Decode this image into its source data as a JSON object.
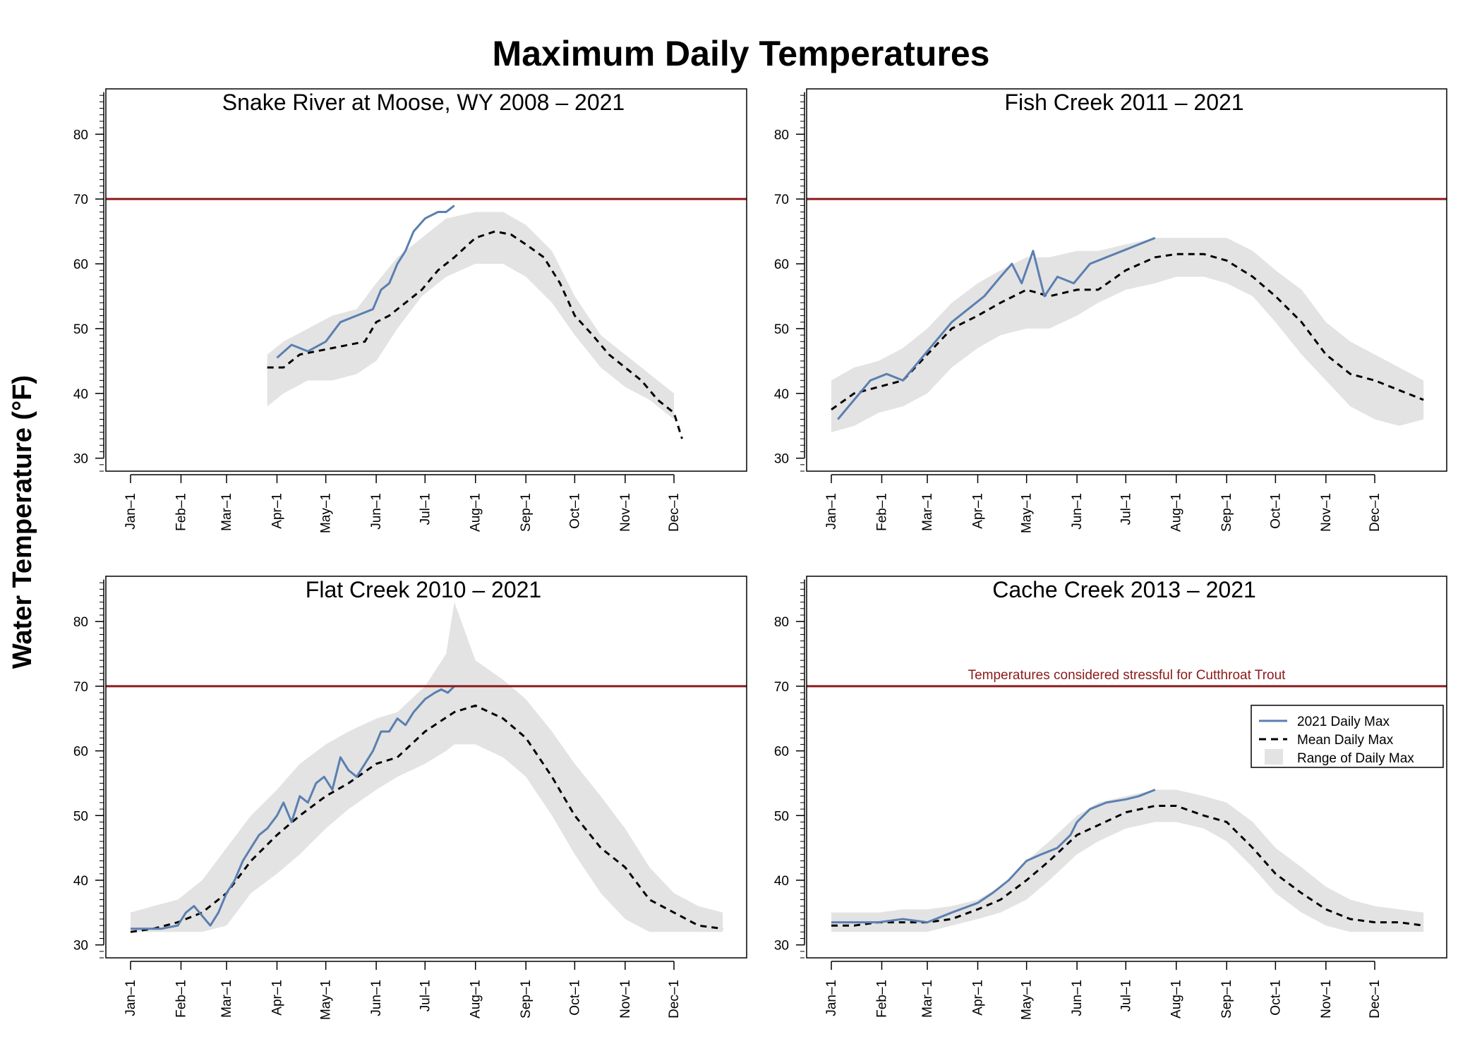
{
  "figure": {
    "title": "Maximum Daily Temperatures",
    "ylabel": "Water Temperature (°F)"
  },
  "colors": {
    "observed": "#5b7fb0",
    "mean": "#000000",
    "range": "#e3e3e3",
    "threshold": "#8b1a1a"
  },
  "threshold_label": "Temperatures considered stressful for Cutthroat Trout",
  "legend": {
    "observed": "2021 Daily Max",
    "mean": "Mean Daily Max",
    "range": "Range of Daily Max"
  },
  "chart_data": [
    {
      "type": "line",
      "title": "Snake River at Moose, WY 2008 – 2021",
      "xticks": [
        "Jan–1",
        "Feb–1",
        "Mar–1",
        "Apr–1",
        "May–1",
        "Jun–1",
        "Jul–1",
        "Aug–1",
        "Sep–1",
        "Oct–1",
        "Nov–1",
        "Dec–1"
      ],
      "xtick_days": [
        1,
        32,
        60,
        91,
        121,
        152,
        182,
        213,
        244,
        274,
        305,
        335
      ],
      "ylim": [
        28,
        87
      ],
      "yticks": [
        30,
        40,
        50,
        60,
        70,
        80
      ],
      "threshold": 70,
      "series": [
        {
          "name": "2021 Daily Max",
          "x": [
            91,
            100,
            110,
            121,
            130,
            140,
            150,
            155,
            160,
            165,
            170,
            175,
            182,
            190,
            195,
            200
          ],
          "y": [
            45.5,
            47.5,
            46.5,
            48,
            51,
            52,
            53,
            56,
            57,
            60,
            62,
            65,
            67,
            68,
            68,
            69
          ]
        },
        {
          "name": "Mean Daily Max",
          "x": [
            85,
            95,
            105,
            115,
            125,
            135,
            145,
            152,
            160,
            170,
            180,
            190,
            200,
            213,
            225,
            235,
            244,
            255,
            265,
            274,
            285,
            295,
            305,
            315,
            325,
            335,
            340
          ],
          "y": [
            44,
            44,
            46,
            46.5,
            47,
            47.5,
            48,
            51,
            52,
            54,
            56,
            59,
            61,
            64,
            65,
            64.5,
            63,
            61,
            57,
            52,
            49,
            46,
            44,
            42,
            39,
            37,
            33
          ]
        },
        {
          "name": "Range of Daily Max",
          "x": [
            85,
            95,
            110,
            125,
            140,
            152,
            165,
            180,
            195,
            213,
            230,
            244,
            260,
            274,
            290,
            305,
            320,
            335
          ],
          "lower": [
            38,
            40,
            42,
            42,
            43,
            45,
            50,
            55,
            58,
            60,
            60,
            58,
            54,
            49,
            44,
            41,
            39,
            36
          ],
          "upper": [
            46,
            48,
            50,
            52,
            53,
            57,
            61,
            64,
            67,
            68,
            68,
            66,
            62,
            55,
            49,
            46,
            43,
            40
          ]
        }
      ]
    },
    {
      "type": "line",
      "title": "Fish Creek 2011 – 2021",
      "xticks": [
        "Jan–1",
        "Feb–1",
        "Mar–1",
        "Apr–1",
        "May–1",
        "Jun–1",
        "Jul–1",
        "Aug–1",
        "Sep–1",
        "Oct–1",
        "Nov–1",
        "Dec–1"
      ],
      "xtick_days": [
        1,
        32,
        60,
        91,
        121,
        152,
        182,
        213,
        244,
        274,
        305,
        335
      ],
      "ylim": [
        28,
        87
      ],
      "yticks": [
        30,
        40,
        50,
        60,
        70,
        80
      ],
      "threshold": 70,
      "series": [
        {
          "name": "2021 Daily Max",
          "x": [
            5,
            15,
            25,
            35,
            45,
            55,
            65,
            75,
            85,
            95,
            105,
            112,
            118,
            125,
            132,
            140,
            150,
            160,
            170,
            180,
            190,
            200
          ],
          "y": [
            36,
            39,
            42,
            43,
            42,
            45,
            48,
            51,
            53,
            55,
            58,
            60,
            57,
            62,
            55,
            58,
            57,
            60,
            61,
            62,
            63,
            64
          ]
        },
        {
          "name": "Mean Daily Max",
          "x": [
            1,
            15,
            30,
            45,
            60,
            75,
            91,
            105,
            121,
            135,
            152,
            165,
            182,
            200,
            213,
            230,
            244,
            260,
            274,
            290,
            305,
            320,
            335,
            350,
            365
          ],
          "y": [
            37.5,
            40,
            41,
            42,
            46,
            50,
            52,
            54,
            56,
            55,
            56,
            56,
            59,
            61,
            61.5,
            61.5,
            60.5,
            58,
            55,
            51,
            46,
            43,
            42,
            40.5,
            39
          ]
        },
        {
          "name": "Range of Daily Max",
          "x": [
            1,
            15,
            30,
            45,
            60,
            75,
            91,
            105,
            121,
            135,
            152,
            165,
            182,
            200,
            213,
            230,
            244,
            260,
            274,
            290,
            305,
            320,
            335,
            350,
            365
          ],
          "lower": [
            34,
            35,
            37,
            38,
            40,
            44,
            47,
            49,
            50,
            50,
            52,
            54,
            56,
            57,
            58,
            58,
            57,
            55,
            51,
            46,
            42,
            38,
            36,
            35,
            36
          ],
          "upper": [
            42,
            44,
            45,
            47,
            50,
            54,
            57,
            59,
            61,
            61,
            62,
            62,
            63,
            64,
            64,
            64,
            64,
            62,
            59,
            56,
            51,
            48,
            46,
            44,
            42
          ]
        }
      ]
    },
    {
      "type": "line",
      "title": "Flat Creek 2010 – 2021",
      "xticks": [
        "Jan–1",
        "Feb–1",
        "Mar–1",
        "Apr–1",
        "May–1",
        "Jun–1",
        "Jul–1",
        "Aug–1",
        "Sep–1",
        "Oct–1",
        "Nov–1",
        "Dec–1"
      ],
      "xtick_days": [
        1,
        32,
        60,
        91,
        121,
        152,
        182,
        213,
        244,
        274,
        305,
        335
      ],
      "ylim": [
        28,
        87
      ],
      "yticks": [
        30,
        40,
        50,
        60,
        70,
        80
      ],
      "threshold": 70,
      "series": [
        {
          "name": "2021 Daily Max",
          "x": [
            1,
            10,
            20,
            30,
            35,
            40,
            50,
            55,
            60,
            65,
            70,
            75,
            80,
            85,
            91,
            95,
            100,
            105,
            110,
            115,
            120,
            125,
            130,
            135,
            140,
            145,
            150,
            155,
            160,
            165,
            170,
            175,
            182,
            188,
            192,
            196,
            200
          ],
          "y": [
            32.5,
            32.5,
            32.5,
            33,
            35,
            36,
            33,
            35,
            38,
            40,
            43,
            45,
            47,
            48,
            50,
            52,
            49,
            53,
            52,
            55,
            56,
            54,
            59,
            57,
            56,
            58,
            60,
            63,
            63,
            65,
            64,
            66,
            68,
            69,
            69.5,
            69,
            70
          ]
        },
        {
          "name": "Mean Daily Max",
          "x": [
            1,
            15,
            30,
            45,
            60,
            75,
            91,
            105,
            121,
            135,
            152,
            165,
            182,
            200,
            213,
            230,
            244,
            260,
            274,
            290,
            305,
            320,
            335,
            350,
            365
          ],
          "y": [
            32,
            32.5,
            33.5,
            35,
            38,
            43,
            47,
            50,
            53,
            55,
            58,
            59,
            63,
            66,
            67,
            65,
            62,
            56,
            50,
            45,
            42,
            37,
            35,
            33,
            32.5
          ]
        },
        {
          "name": "Range of Daily Max",
          "x": [
            1,
            15,
            30,
            45,
            60,
            75,
            91,
            105,
            121,
            135,
            152,
            165,
            182,
            195,
            200,
            213,
            230,
            244,
            260,
            274,
            290,
            305,
            320,
            335,
            350,
            365
          ],
          "lower": [
            32,
            32,
            32,
            32,
            33,
            38,
            41,
            44,
            48,
            51,
            54,
            56,
            58,
            60,
            61,
            61,
            59,
            56,
            50,
            44,
            38,
            34,
            32,
            32,
            32,
            32
          ],
          "upper": [
            35,
            36,
            37,
            40,
            45,
            50,
            54,
            58,
            61,
            63,
            65,
            66,
            70,
            75,
            83,
            74,
            71,
            68,
            63,
            58,
            53,
            48,
            42,
            38,
            36,
            35
          ]
        }
      ]
    },
    {
      "type": "line",
      "title": "Cache Creek 2013 – 2021",
      "xticks": [
        "Jan–1",
        "Feb–1",
        "Mar–1",
        "Apr–1",
        "May–1",
        "Jun–1",
        "Jul–1",
        "Aug–1",
        "Sep–1",
        "Oct–1",
        "Nov–1",
        "Dec–1"
      ],
      "xtick_days": [
        1,
        32,
        60,
        91,
        121,
        152,
        182,
        213,
        244,
        274,
        305,
        335
      ],
      "ylim": [
        28,
        87
      ],
      "yticks": [
        30,
        40,
        50,
        60,
        70,
        80
      ],
      "threshold": 70,
      "series": [
        {
          "name": "2021 Daily Max",
          "x": [
            1,
            15,
            30,
            45,
            60,
            75,
            91,
            100,
            110,
            121,
            130,
            140,
            148,
            152,
            160,
            170,
            182,
            190,
            200
          ],
          "y": [
            33.5,
            33.5,
            33.5,
            34,
            33.5,
            35,
            36.5,
            38,
            40,
            43,
            44,
            45,
            47,
            49,
            51,
            52,
            52.5,
            53,
            54
          ]
        },
        {
          "name": "Mean Daily Max",
          "x": [
            1,
            15,
            30,
            45,
            60,
            75,
            91,
            105,
            121,
            135,
            152,
            165,
            182,
            200,
            213,
            230,
            244,
            260,
            274,
            290,
            305,
            320,
            335,
            350,
            365
          ],
          "y": [
            33,
            33,
            33.5,
            33.5,
            33.5,
            34,
            35.5,
            37,
            40,
            43,
            47,
            48.5,
            50.5,
            51.5,
            51.5,
            50,
            49,
            45,
            41,
            38,
            35.5,
            34,
            33.5,
            33.5,
            33
          ]
        },
        {
          "name": "Range of Daily Max",
          "x": [
            1,
            15,
            30,
            45,
            60,
            75,
            91,
            105,
            121,
            135,
            152,
            165,
            182,
            200,
            213,
            230,
            244,
            260,
            274,
            290,
            305,
            320,
            335,
            350,
            365
          ],
          "lower": [
            32,
            32,
            32,
            32,
            32,
            33,
            34,
            35,
            37,
            40,
            44,
            46,
            48,
            49,
            49,
            48,
            46,
            42,
            38,
            35,
            33,
            32,
            32,
            32,
            32
          ],
          "upper": [
            35,
            35,
            35,
            35.5,
            35.5,
            36,
            37,
            39,
            43,
            46,
            50,
            52,
            53,
            54,
            54,
            53,
            52,
            49,
            45,
            42,
            39,
            37,
            36,
            35.5,
            35
          ]
        }
      ]
    }
  ]
}
